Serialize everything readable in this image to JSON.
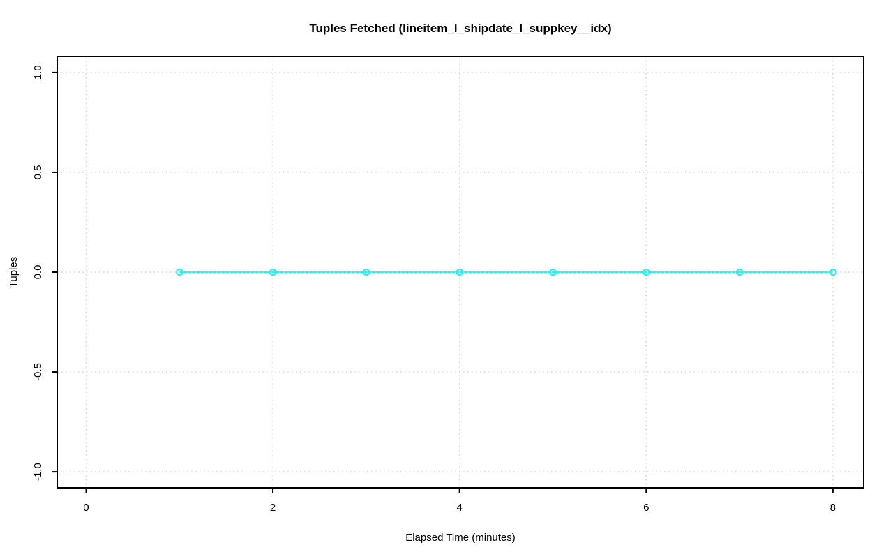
{
  "figure": {
    "background": "#ffffff"
  },
  "chart_data": {
    "type": "line",
    "title": "Tuples Fetched (lineitem_l_shipdate_l_suppkey__idx)",
    "xlabel": "Elapsed Time (minutes)",
    "ylabel": "Tuples",
    "x": [
      1,
      2,
      3,
      4,
      5,
      6,
      7,
      8
    ],
    "y": [
      0,
      0,
      0,
      0,
      0,
      0,
      0,
      0
    ],
    "xlim": [
      -0.31,
      8.33
    ],
    "ylim": [
      -1.08,
      1.08
    ],
    "xticks": {
      "values": [
        0,
        2,
        4,
        6,
        8
      ],
      "labels": [
        "0",
        "2",
        "4",
        "6",
        "8"
      ]
    },
    "yticks": {
      "values": [
        -1.0,
        -0.5,
        0.0,
        0.5,
        1.0
      ],
      "labels": [
        "-1.0",
        "-0.5",
        "0.0",
        "0.5",
        "1.0"
      ]
    },
    "grid": true,
    "grid_style": "dotted",
    "legend": "none",
    "marker": "open-circle",
    "colors": {
      "series": "#00ffff",
      "grid": "#d3d3d3",
      "axis": "#000000",
      "text": "#000000"
    }
  }
}
